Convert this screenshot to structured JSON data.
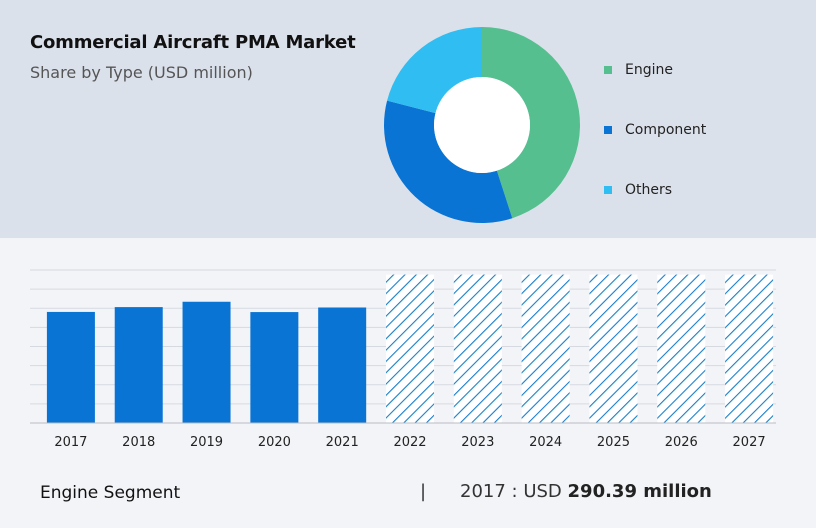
{
  "header": {
    "title": "Commercial Aircraft PMA Market",
    "subtitle": "Share by Type (USD million)"
  },
  "legend": [
    {
      "label": "Engine",
      "color": "#55bf8f"
    },
    {
      "label": "Component",
      "color": "#0a74d4"
    },
    {
      "label": "Others",
      "color": "#30bdf2"
    }
  ],
  "footer": {
    "segment_label": "Engine Segment",
    "separator": "|",
    "year_prefix": "2017 : USD",
    "value_text": "290.39 million"
  },
  "chart_data": [
    {
      "type": "pie",
      "donut": true,
      "categories": [
        "Engine",
        "Component",
        "Others"
      ],
      "values": [
        45,
        34,
        21
      ],
      "colors": [
        "#55bf8f",
        "#0a74d4",
        "#30bdf2"
      ]
    },
    {
      "type": "bar",
      "categories": [
        "2017",
        "2018",
        "2019",
        "2020",
        "2021",
        "2022",
        "2023",
        "2024",
        "2025",
        "2026",
        "2027"
      ],
      "values": [
        290.39,
        303,
        317,
        290,
        302,
        null,
        null,
        null,
        null,
        null,
        null
      ],
      "forecast": [
        false,
        false,
        false,
        false,
        false,
        true,
        true,
        true,
        true,
        true,
        true
      ],
      "ylim": [
        0,
        400
      ],
      "grid": true,
      "bar_color": "#0a74d4",
      "forecast_color": "#1a7fc9"
    }
  ]
}
